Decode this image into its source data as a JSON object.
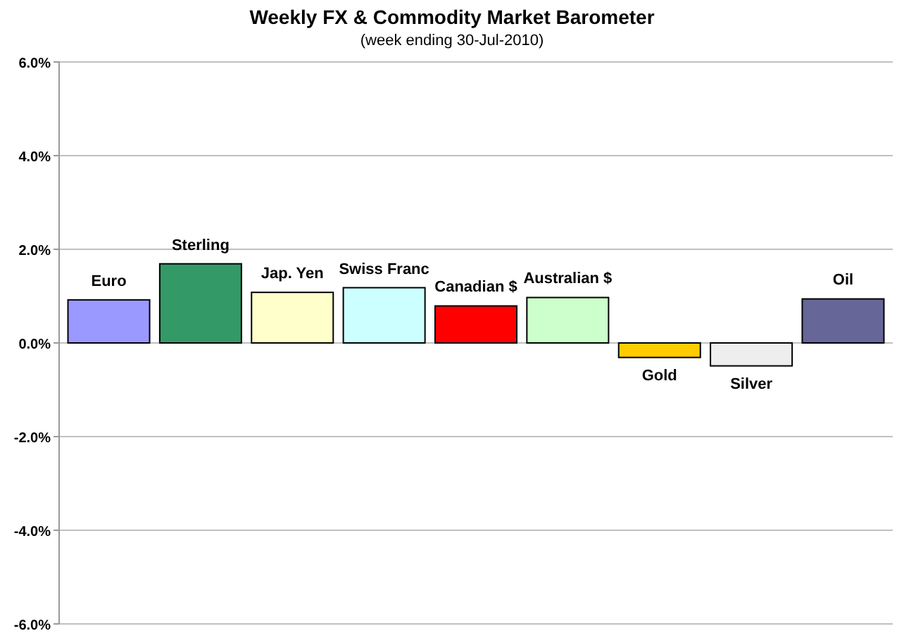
{
  "chart_data": {
    "type": "bar",
    "title": "Weekly FX & Commodity Market Barometer",
    "subtitle": "(week ending 30-Jul-2010)",
    "categories": [
      "Euro",
      "Sterling",
      "Jap. Yen",
      "Swiss Franc",
      "Canadian $",
      "Australian $",
      "Gold",
      "Silver",
      "Oil"
    ],
    "values": [
      0.92,
      1.69,
      1.08,
      1.18,
      0.79,
      0.97,
      -0.31,
      -0.49,
      0.94
    ],
    "colors": [
      "#9999ff",
      "#339966",
      "#ffffcc",
      "#ccffff",
      "#ff0000",
      "#ccffcc",
      "#ffcc00",
      "#eeeeee",
      "#666699"
    ],
    "ylim": [
      -6,
      6
    ],
    "yticks": [
      {
        "value": -6,
        "label": "-6.0%"
      },
      {
        "value": -4,
        "label": "-4.0%"
      },
      {
        "value": -2,
        "label": "-2.0%"
      },
      {
        "value": 0,
        "label": "0.0%"
      },
      {
        "value": 2,
        "label": "2.0%"
      },
      {
        "value": 4,
        "label": "4.0%"
      },
      {
        "value": 6,
        "label": "6.0%"
      }
    ],
    "grid": "y"
  }
}
